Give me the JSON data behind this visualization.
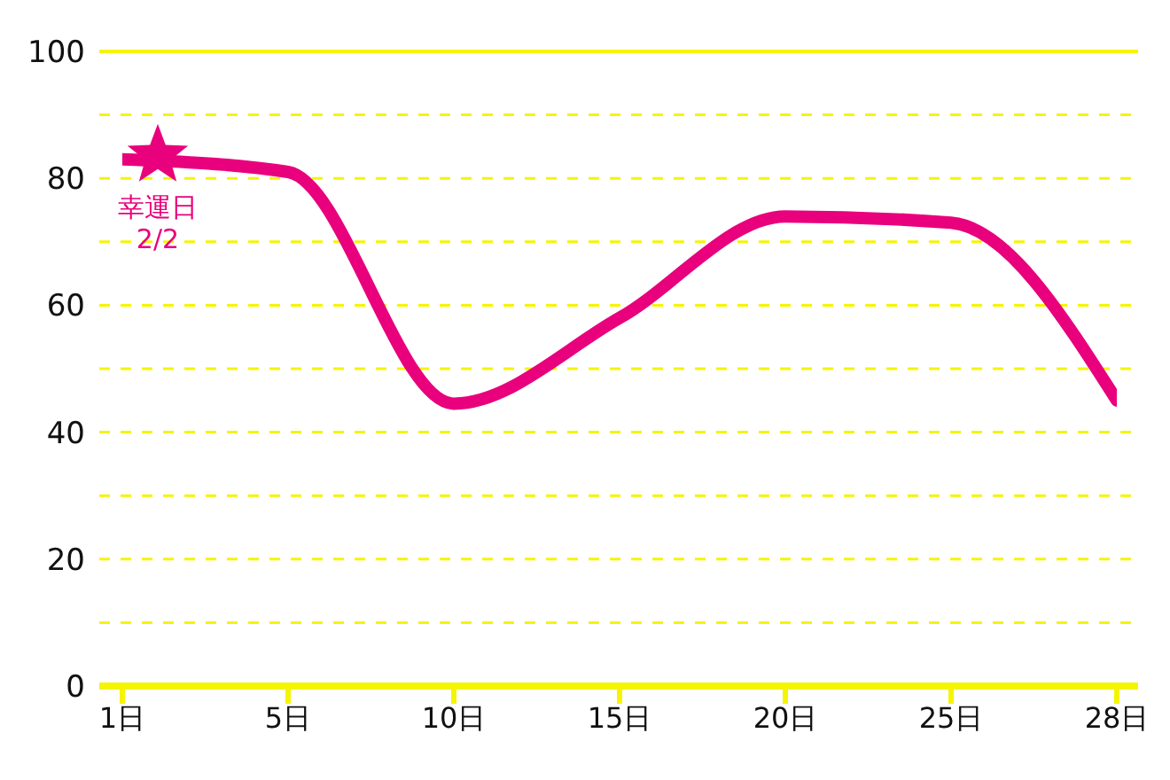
{
  "chart_data": {
    "type": "line",
    "categories": [
      "1日",
      "5日",
      "10日",
      "15日",
      "20日",
      "25日",
      "28日"
    ],
    "series": [
      {
        "color": "#e8007d",
        "values": [
          83,
          81,
          44.5,
          58,
          74,
          73,
          45
        ]
      }
    ],
    "ylim": [
      0,
      100
    ],
    "yticks": [
      0,
      20,
      40,
      60,
      80,
      100
    ],
    "grid": "y",
    "marker": "none",
    "line_style": "solid",
    "annotations": [
      {
        "text": "幸運日\n2/2",
        "x": "1日",
        "y": 83
      }
    ]
  }
}
